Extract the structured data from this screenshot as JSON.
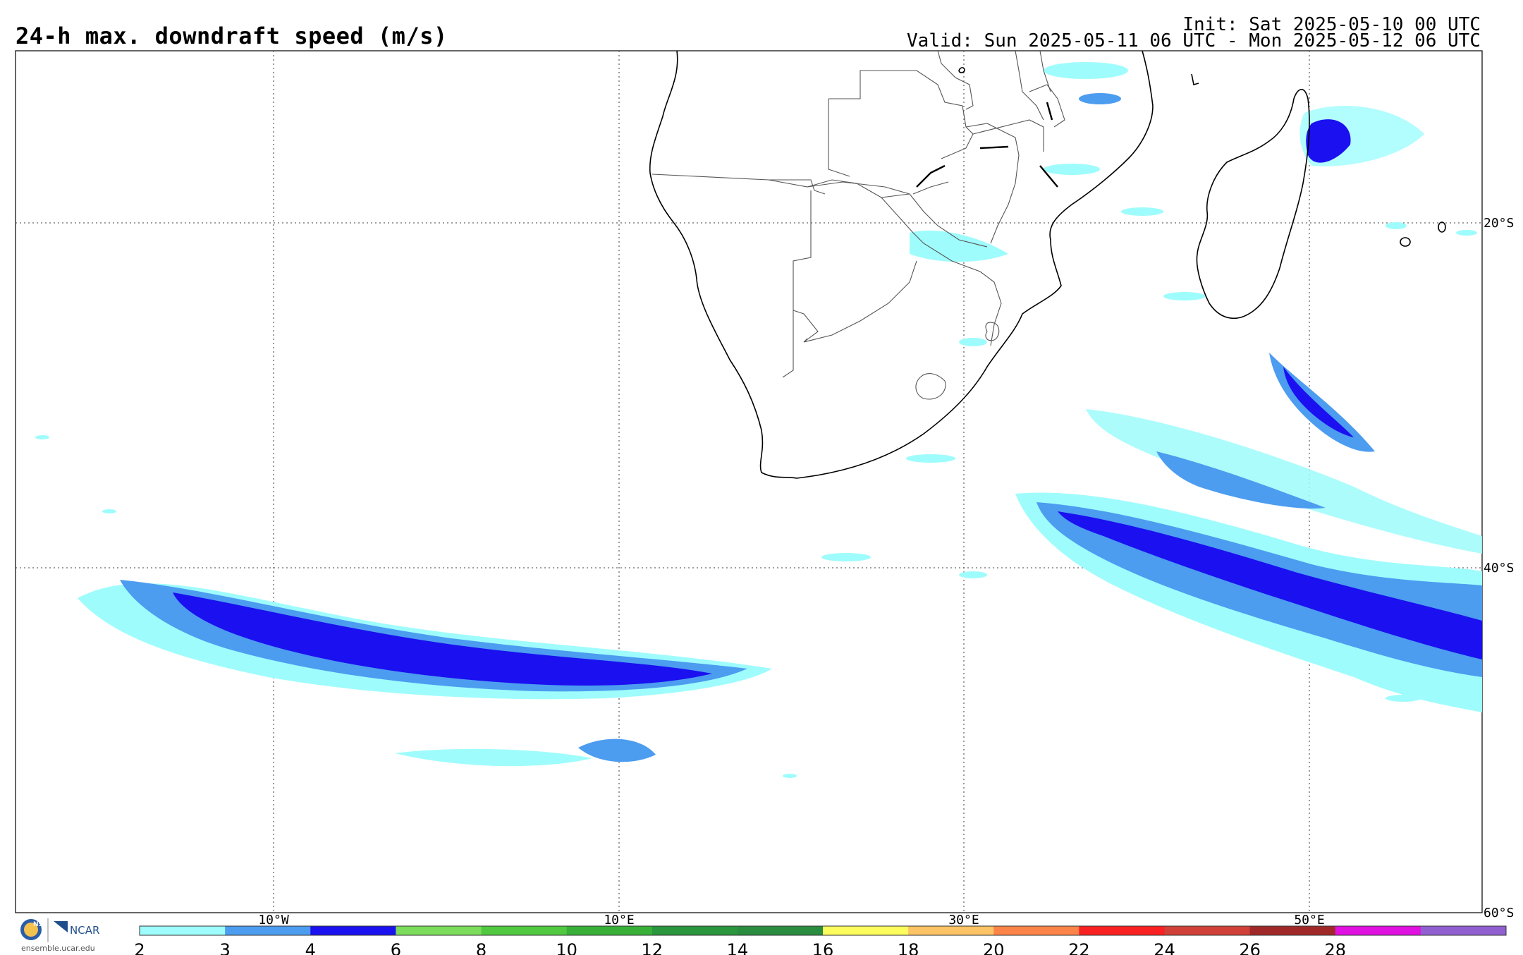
{
  "header": {
    "title": "24-h max. downdraft speed (m/s)",
    "init": "Init: Sat 2025-05-10 00 UTC",
    "valid": "Valid: Sun 2025-05-11 06 UTC - Mon 2025-05-12 06 UTC"
  },
  "map": {
    "lon_labels": [
      "10°W",
      "10°E",
      "30°E",
      "50°E"
    ],
    "lat_labels": [
      "20°S",
      "40°S",
      "60°S"
    ],
    "colors": {
      "land_outline": "#000000",
      "border": "#555555",
      "grid": "#555555"
    }
  },
  "colorbar": {
    "ticks": [
      "2",
      "3",
      "4",
      "6",
      "8",
      "10",
      "12",
      "14",
      "16",
      "18",
      "20",
      "22",
      "24",
      "26",
      "28"
    ],
    "colors": [
      "#9ffcfc",
      "#4c9cf0",
      "#1a10f0",
      "#7cdc5c",
      "#50c840",
      "#38b038",
      "#2a963e",
      "#2a8c3e",
      "#fcfc5c",
      "#fcc464",
      "#fc8448",
      "#f82020",
      "#d04038",
      "#a02828",
      "#e010e0",
      "#9060d0"
    ]
  },
  "logo": {
    "org_a": "NSF",
    "org_b": "NCAR",
    "url": "ensemble.ucar.edu"
  }
}
